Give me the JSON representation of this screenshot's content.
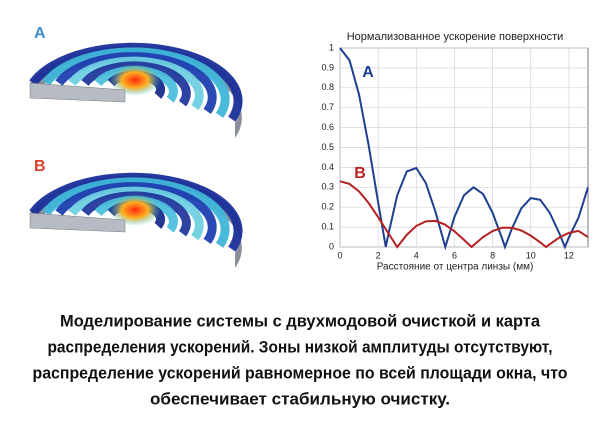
{
  "chart_data": {
    "type": "line",
    "title": "Нормализованное ускорение поверхности",
    "x_label": "Расстояние от центра линзы (мм)",
    "xlim": [
      0,
      13
    ],
    "xticks": [
      0,
      2,
      4,
      6,
      8,
      10,
      12
    ],
    "ylim": [
      0,
      1
    ],
    "yticks": [
      0,
      0.1,
      0.2,
      0.3,
      0.4,
      0.5,
      0.6,
      0.7,
      0.8,
      0.9,
      1
    ],
    "grid": true,
    "series": [
      {
        "name": "A",
        "color": "#1f3f8f",
        "x": [
          0,
          0.5,
          1,
          1.5,
          2,
          2.4,
          2.5,
          3,
          3.5,
          4,
          4.5,
          5,
          5.5,
          5.52,
          6,
          6.5,
          7,
          7.5,
          8,
          8.5,
          8.65,
          9,
          9.5,
          10,
          10.5,
          11,
          11.5,
          11.79,
          12,
          12.5,
          13
        ],
        "values": [
          1,
          0.938,
          0.765,
          0.512,
          0.224,
          0,
          0.048,
          0.26,
          0.38,
          0.397,
          0.321,
          0.178,
          0.007,
          0,
          0.151,
          0.26,
          0.3,
          0.266,
          0.172,
          0.042,
          0,
          0.09,
          0.194,
          0.246,
          0.237,
          0.171,
          0.068,
          0,
          0.048,
          0.147,
          0.3
        ]
      },
      {
        "name": "B",
        "color": "#b52020",
        "x": [
          0,
          0.5,
          1,
          1.5,
          2,
          2.5,
          3,
          3.5,
          4,
          4.5,
          5,
          5.5,
          6,
          6.5,
          6.9,
          7,
          7.5,
          8,
          8.5,
          9,
          9.5,
          10,
          10.5,
          10.8,
          11,
          11.5,
          12,
          12.5,
          13
        ],
        "values": [
          0.33,
          0.317,
          0.279,
          0.221,
          0.15,
          0.074,
          0,
          0.061,
          0.106,
          0.129,
          0.131,
          0.113,
          0.079,
          0.036,
          0,
          0.009,
          0.05,
          0.08,
          0.097,
          0.097,
          0.083,
          0.057,
          0.023,
          0,
          0.014,
          0.048,
          0.071,
          0.081,
          0.05
        ]
      }
    ]
  },
  "illustrations": {
    "labels": [
      "A",
      "B"
    ]
  },
  "caption": [
    "Моделирование системы с двухмодовой очисткой и карта",
    "распределения ускорений. Зоны низкой амплитуды отсутствуют,",
    "распределение ускорений равномерное по всей площади окна, что",
    "обеспечивает стабильную очистку."
  ]
}
